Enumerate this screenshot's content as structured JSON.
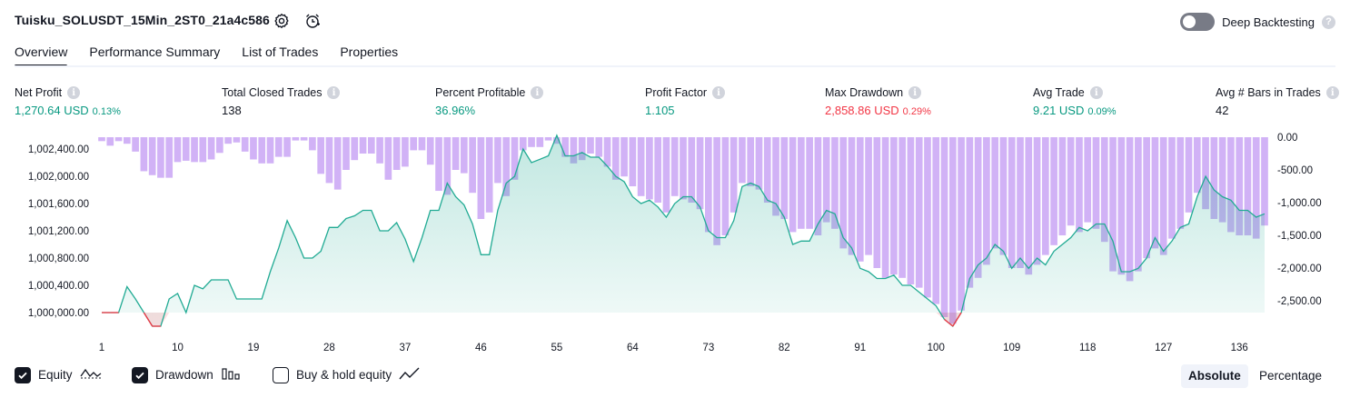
{
  "header": {
    "strategy_name": "Tuisku_SOLUSDT_15Min_2ST0_21a4c586",
    "settings_icon": "gear-icon",
    "alert_icon": "add-alert-icon",
    "deep_backtesting_label": "Deep Backtesting",
    "deep_backtesting_enabled": false,
    "help_icon": "question-icon"
  },
  "tabs": [
    {
      "label": "Overview",
      "active": true
    },
    {
      "label": "Performance Summary",
      "active": false
    },
    {
      "label": "List of Trades",
      "active": false
    },
    {
      "label": "Properties",
      "active": false
    }
  ],
  "metrics": [
    {
      "label": "Net Profit",
      "value": "1,270.64 USD",
      "pct": "0.13%",
      "color": "#089981"
    },
    {
      "label": "Total Closed Trades",
      "value": "138",
      "pct": "",
      "color": "#131722"
    },
    {
      "label": "Percent Profitable",
      "value": "36.96%",
      "pct": "",
      "color": "#089981"
    },
    {
      "label": "Profit Factor",
      "value": "1.105",
      "pct": "",
      "color": "#089981"
    },
    {
      "label": "Max Drawdown",
      "value": "2,858.86 USD",
      "pct": "0.29%",
      "color": "#f23645"
    },
    {
      "label": "Avg Trade",
      "value": "9.21 USD",
      "pct": "0.09%",
      "color": "#089981"
    },
    {
      "label": "Avg # Bars in Trades",
      "value": "42",
      "pct": "",
      "color": "#131722"
    }
  ],
  "chart_data": {
    "type": "area",
    "left_axis": {
      "ticks": [
        "1,000,000.00",
        "1,000,400.00",
        "1,000,800.00",
        "1,001,200.00",
        "1,001,600.00",
        "1,002,000.00",
        "1,002,400.00"
      ],
      "range": [
        999800,
        1002600
      ]
    },
    "right_axis": {
      "ticks": [
        "0.00",
        "-500.00",
        "-1,000.00",
        "-1,500.00",
        "-2,000.00",
        "-2,500.00"
      ],
      "range": [
        -2900,
        0
      ]
    },
    "x_ticks": [
      "1",
      "10",
      "19",
      "28",
      "37",
      "46",
      "55",
      "64",
      "73",
      "82",
      "91",
      "100",
      "109",
      "118",
      "127",
      "136"
    ],
    "x_range": [
      1,
      139
    ],
    "series": [
      {
        "name": "Equity",
        "color": "#22ab94",
        "values": [
          1000000,
          1000000,
          1000000,
          1000380,
          1000200,
          1000000,
          999800,
          999800,
          1000200,
          1000280,
          1000000,
          1000400,
          1000350,
          1000480,
          1000480,
          1000480,
          1000200,
          1000200,
          1000200,
          1000200,
          1000600,
          1000950,
          1001350,
          1001100,
          1000800,
          1000800,
          1000900,
          1001250,
          1001250,
          1001380,
          1001420,
          1001500,
          1001500,
          1001200,
          1001200,
          1001320,
          1001080,
          1000750,
          1001100,
          1001500,
          1001500,
          1001900,
          1001700,
          1001580,
          1001300,
          1000850,
          1000850,
          1001500,
          1001900,
          1002000,
          1002400,
          1002200,
          1002250,
          1002300,
          1002600,
          1002300,
          1002300,
          1002350,
          1002280,
          1002280,
          1002150,
          1002000,
          1001920,
          1001700,
          1001600,
          1001650,
          1001550,
          1001400,
          1001600,
          1001700,
          1001700,
          1001550,
          1001200,
          1001100,
          1001100,
          1001350,
          1001850,
          1001900,
          1001850,
          1001650,
          1001600,
          1001400,
          1001000,
          1001050,
          1001050,
          1001300,
          1001500,
          1001450,
          1001100,
          1000950,
          1000650,
          1000600,
          1000500,
          1000500,
          1000550,
          1000400,
          1000400,
          1000300,
          1000200,
          1000100,
          999900,
          999800,
          1000000,
          1000500,
          1000700,
          1000800,
          1001000,
          1000900,
          1000650,
          1000800,
          1000650,
          1000800,
          1000700,
          1000900,
          1001000,
          1001100,
          1001250,
          1001200,
          1001300,
          1001300,
          1001050,
          1000600,
          1000600,
          1000650,
          1000800,
          1001100,
          1000900,
          1001050,
          1001250,
          1001300,
          1001700,
          1002000,
          1001800,
          1001700,
          1001650,
          1001500,
          1001500,
          1001400,
          1001450
        ]
      },
      {
        "name": "Drawdown",
        "color": "#c9a5f5",
        "values": [
          -60,
          -130,
          -60,
          -100,
          -220,
          -520,
          -580,
          -620,
          -620,
          -380,
          -360,
          -380,
          -380,
          -340,
          -240,
          -100,
          -80,
          -220,
          -340,
          -400,
          -400,
          -300,
          -300,
          -50,
          -50,
          -200,
          -560,
          -700,
          -800,
          -500,
          -350,
          -250,
          -250,
          -400,
          -650,
          -500,
          -450,
          -200,
          -200,
          -420,
          -820,
          -880,
          -500,
          -550,
          -850,
          -1250,
          -1150,
          -700,
          -900,
          -650,
          -200,
          -150,
          -150,
          -50,
          -100,
          -300,
          -400,
          -350,
          -250,
          -300,
          -450,
          -650,
          -600,
          -750,
          -900,
          -950,
          -1000,
          -1150,
          -900,
          -950,
          -1000,
          -1100,
          -1450,
          -1650,
          -1500,
          -1150,
          -700,
          -750,
          -800,
          -1000,
          -1200,
          -1250,
          -1450,
          -1400,
          -1400,
          -1500,
          -1300,
          -1400,
          -1700,
          -1800,
          -1900,
          -1800,
          -2000,
          -2150,
          -2100,
          -2150,
          -2250,
          -2300,
          -2450,
          -2550,
          -2750,
          -2850,
          -2650,
          -2300,
          -2150,
          -1950,
          -1700,
          -1800,
          -2000,
          -2000,
          -2100,
          -1950,
          -1800,
          -1650,
          -1500,
          -1350,
          -1450,
          -1300,
          -1400,
          -1600,
          -2050,
          -2100,
          -2200,
          -2050,
          -1850,
          -1700,
          -1800,
          -1550,
          -1400,
          -1150,
          -850,
          -1100,
          -1250,
          -1300,
          -1450,
          -1500,
          -1500,
          -1550,
          -1350
        ]
      }
    ],
    "zero_line_color": "#f23645"
  },
  "legend": [
    {
      "label": "Equity",
      "checked": true,
      "icon": "equity-line-icon"
    },
    {
      "label": "Drawdown",
      "checked": true,
      "icon": "drawdown-bars-icon"
    },
    {
      "label": "Buy & hold equity",
      "checked": false,
      "icon": "buy-hold-line-icon"
    }
  ],
  "modes": [
    {
      "label": "Absolute",
      "active": true
    },
    {
      "label": "Percentage",
      "active": false
    }
  ]
}
